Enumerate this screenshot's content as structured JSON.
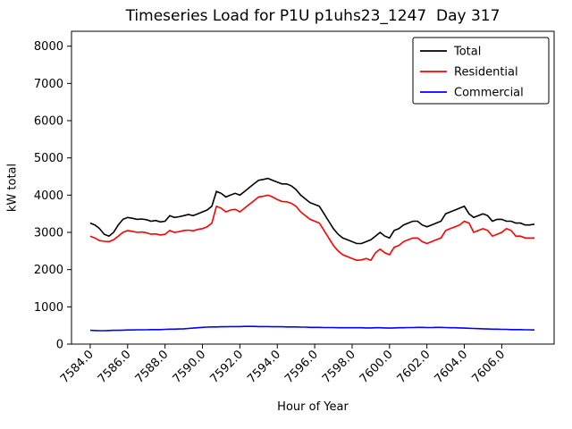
{
  "chart_data": {
    "type": "line",
    "title": "Timeseries Load for P1U p1uhs23_1247  Day 317",
    "xlabel": "Hour of Year",
    "ylabel": "kW total",
    "xlim": [
      7583.0,
      7608.8
    ],
    "ylim": [
      0,
      8400
    ],
    "grid": false,
    "legend_position": "upper right",
    "xticks": [
      "7584.0",
      "7586.0",
      "7588.0",
      "7590.0",
      "7592.0",
      "7594.0",
      "7596.0",
      "7598.0",
      "7600.0",
      "7602.0",
      "7604.0",
      "7606.0"
    ],
    "yticks": [
      0,
      1000,
      2000,
      3000,
      4000,
      5000,
      6000,
      7000,
      8000
    ],
    "x": [
      7584.0,
      7584.25,
      7584.5,
      7584.75,
      7585.0,
      7585.25,
      7585.5,
      7585.75,
      7586.0,
      7586.25,
      7586.5,
      7586.75,
      7587.0,
      7587.25,
      7587.5,
      7587.75,
      7588.0,
      7588.25,
      7588.5,
      7588.75,
      7589.0,
      7589.25,
      7589.5,
      7589.75,
      7590.0,
      7590.25,
      7590.5,
      7590.75,
      7591.0,
      7591.25,
      7591.5,
      7591.75,
      7592.0,
      7592.25,
      7592.5,
      7592.75,
      7593.0,
      7593.25,
      7593.5,
      7593.75,
      7594.0,
      7594.25,
      7594.5,
      7594.75,
      7595.0,
      7595.25,
      7595.5,
      7595.75,
      7596.0,
      7596.25,
      7596.5,
      7596.75,
      7597.0,
      7597.25,
      7597.5,
      7597.75,
      7598.0,
      7598.25,
      7598.5,
      7598.75,
      7599.0,
      7599.25,
      7599.5,
      7599.75,
      7600.0,
      7600.25,
      7600.5,
      7600.75,
      7601.0,
      7601.25,
      7601.5,
      7601.75,
      7602.0,
      7602.25,
      7602.5,
      7602.75,
      7603.0,
      7603.25,
      7603.5,
      7603.75,
      7604.0,
      7604.25,
      7604.5,
      7604.75,
      7605.0,
      7605.25,
      7605.5,
      7605.75,
      7606.0,
      7606.25,
      7606.5,
      7606.75,
      7607.0,
      7607.25,
      7607.5,
      7607.75
    ],
    "series": [
      {
        "name": "Total",
        "color": "#000000",
        "values": [
          3250,
          3200,
          3100,
          2950,
          2900,
          3000,
          3200,
          3350,
          3400,
          3380,
          3350,
          3360,
          3340,
          3300,
          3320,
          3280,
          3300,
          3450,
          3400,
          3420,
          3450,
          3480,
          3450,
          3500,
          3550,
          3600,
          3700,
          4100,
          4050,
          3950,
          4000,
          4050,
          4000,
          4100,
          4200,
          4300,
          4400,
          4420,
          4450,
          4400,
          4350,
          4300,
          4300,
          4250,
          4150,
          4000,
          3900,
          3800,
          3750,
          3700,
          3500,
          3300,
          3100,
          2950,
          2850,
          2800,
          2750,
          2700,
          2700,
          2750,
          2800,
          2900,
          3000,
          2900,
          2850,
          3050,
          3100,
          3200,
          3250,
          3300,
          3300,
          3200,
          3150,
          3200,
          3250,
          3300,
          3500,
          3550,
          3600,
          3650,
          3700,
          3500,
          3400,
          3450,
          3500,
          3450,
          3300,
          3350,
          3350,
          3300,
          3300,
          3250,
          3250,
          3200,
          3200,
          3220
        ]
      },
      {
        "name": "Residential",
        "color": "#ff0000",
        "values": [
          2900,
          2850,
          2780,
          2760,
          2750,
          2800,
          2900,
          3000,
          3050,
          3030,
          3000,
          3010,
          2990,
          2950,
          2960,
          2930,
          2950,
          3050,
          3000,
          3020,
          3050,
          3060,
          3040,
          3080,
          3100,
          3150,
          3250,
          3700,
          3650,
          3550,
          3600,
          3620,
          3550,
          3650,
          3750,
          3850,
          3950,
          3970,
          4000,
          3950,
          3880,
          3830,
          3820,
          3780,
          3700,
          3550,
          3450,
          3350,
          3300,
          3250,
          3050,
          2850,
          2650,
          2500,
          2400,
          2350,
          2300,
          2250,
          2260,
          2300,
          2250,
          2450,
          2550,
          2450,
          2400,
          2600,
          2650,
          2750,
          2800,
          2850,
          2850,
          2750,
          2700,
          2750,
          2800,
          2850,
          3050,
          3100,
          3150,
          3200,
          3300,
          3250,
          3000,
          3050,
          3100,
          3050,
          2900,
          2950,
          3000,
          3100,
          3050,
          2900,
          2900,
          2850,
          2850,
          2850
        ]
      },
      {
        "name": "Commercial",
        "color": "#0000ff",
        "values": [
          370,
          365,
          360,
          360,
          365,
          370,
          370,
          375,
          380,
          380,
          385,
          385,
          385,
          390,
          390,
          390,
          395,
          400,
          400,
          405,
          410,
          420,
          430,
          440,
          450,
          455,
          460,
          460,
          465,
          465,
          470,
          470,
          470,
          475,
          475,
          475,
          470,
          470,
          470,
          465,
          465,
          465,
          460,
          460,
          460,
          455,
          455,
          450,
          450,
          450,
          445,
          445,
          445,
          440,
          440,
          440,
          440,
          440,
          440,
          435,
          435,
          440,
          440,
          435,
          430,
          435,
          440,
          440,
          445,
          445,
          450,
          450,
          445,
          445,
          450,
          450,
          445,
          440,
          440,
          435,
          430,
          425,
          420,
          415,
          410,
          405,
          400,
          400,
          395,
          395,
          390,
          390,
          390,
          385,
          385,
          380
        ]
      }
    ]
  }
}
